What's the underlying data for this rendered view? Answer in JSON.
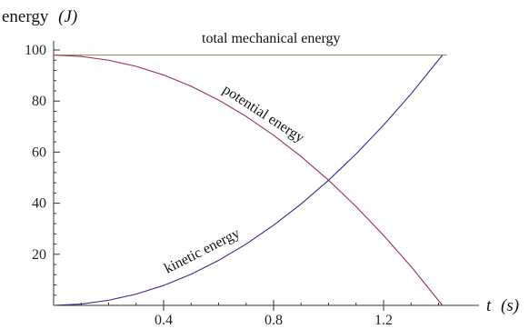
{
  "chart_data": {
    "type": "line",
    "xlabel_var": "t",
    "xlabel_unit": "(s)",
    "ylabel_word": "energy",
    "ylabel_unit": "(J)",
    "xlim": [
      0,
      1.43
    ],
    "ylim": [
      0,
      100
    ],
    "x_ticks_major": [
      0.4,
      0.8,
      1.2
    ],
    "x_ticks_major_labels": [
      "0.4",
      "0.8",
      "1.2"
    ],
    "y_ticks_major": [
      20,
      40,
      60,
      80,
      100
    ],
    "y_ticks_major_labels": [
      "20",
      "40",
      "60",
      "80",
      "100"
    ],
    "grid": false,
    "series": [
      {
        "name": "total mechanical energy",
        "color": "#8c8a3c",
        "x": [
          0,
          1.43
        ],
        "y": [
          98,
          98
        ]
      },
      {
        "name": "potential energy",
        "color": "#9b2f5e",
        "x": [
          0,
          0.1,
          0.2,
          0.3,
          0.4,
          0.5,
          0.6,
          0.7,
          0.8,
          0.9,
          1.0,
          1.1,
          1.2,
          1.3,
          1.414
        ],
        "y": [
          98,
          97.5,
          96.0,
          93.6,
          90.2,
          85.8,
          80.4,
          74.0,
          66.6,
          58.3,
          49.0,
          38.7,
          27.4,
          15.2,
          0
        ]
      },
      {
        "name": "kinetic energy",
        "color": "#2c2f8c",
        "x": [
          0,
          0.1,
          0.2,
          0.3,
          0.4,
          0.5,
          0.6,
          0.7,
          0.8,
          0.9,
          1.0,
          1.1,
          1.2,
          1.3,
          1.414
        ],
        "y": [
          0,
          0.5,
          2.0,
          4.4,
          7.8,
          12.2,
          17.6,
          24.0,
          31.4,
          39.7,
          49.0,
          59.3,
          70.6,
          82.8,
          98
        ]
      }
    ],
    "annotations": [
      {
        "text": "total mechanical energy"
      },
      {
        "text": "potential energy"
      },
      {
        "text": "kinetic energy"
      }
    ]
  }
}
